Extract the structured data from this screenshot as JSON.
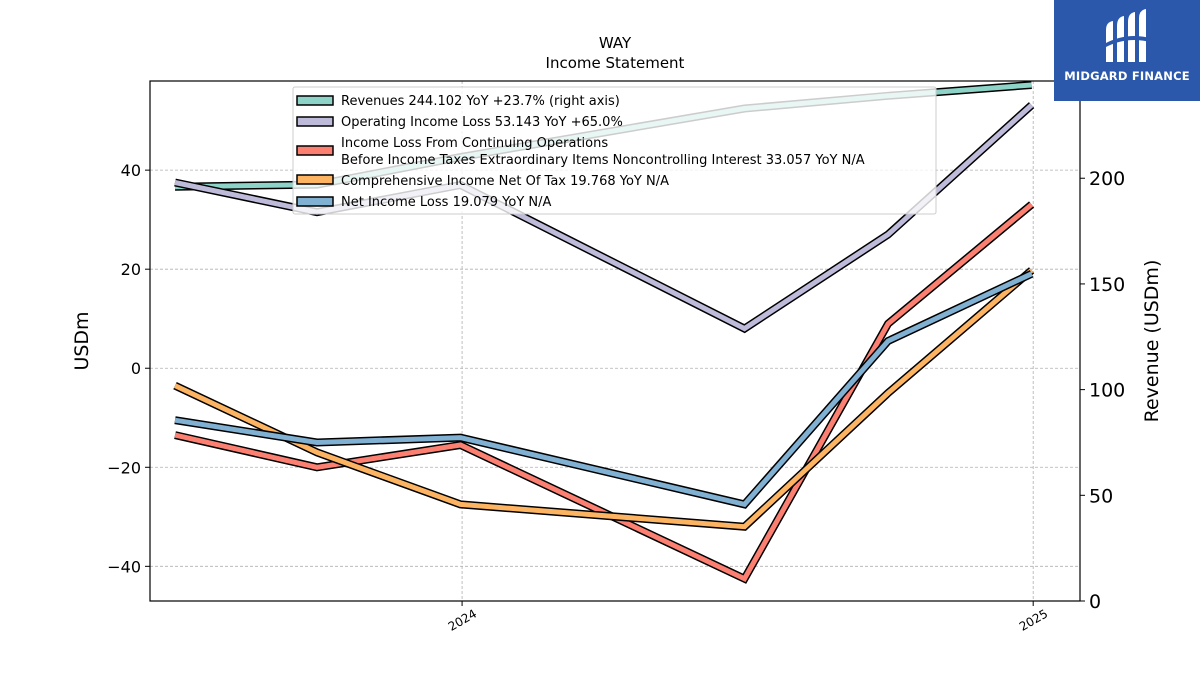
{
  "brand": {
    "name": "MIDGARD FINANCE",
    "background": "#2b58ab"
  },
  "chart_data": {
    "type": "line",
    "title": "WAY",
    "subtitle": "Income Statement",
    "ylabel": "USDm",
    "ylabel_right": "Revenue (USDm)",
    "ylim": [
      -47,
      58
    ],
    "ylim_right": [
      0,
      246
    ],
    "yticks": [
      -40,
      -20,
      0,
      20,
      40
    ],
    "yticks_right": [
      0,
      50,
      100,
      150,
      200
    ],
    "x_range": [
      "2023-06-15",
      "2025-01-31"
    ],
    "xticks": [
      {
        "date": "2024-01-01",
        "label": "2024"
      },
      {
        "date": "2025-01-01",
        "label": "2025"
      }
    ],
    "grid": true,
    "legend_position": "top-center",
    "x": [
      "2023-07-01",
      "2023-09-30",
      "2023-12-31",
      "2024-06-30",
      "2024-09-30",
      "2024-12-31"
    ],
    "series": [
      {
        "name": "Revenues",
        "legend": "Revenues  244.102 YoY +23.7% (right axis)",
        "axis": "right",
        "color": "#8dd3c7",
        "values": [
          196,
          197,
          210,
          233,
          239,
          244.102
        ]
      },
      {
        "name": "Operating Income Loss",
        "legend": "Operating Income Loss  53.143 YoY +65.0%",
        "axis": "left",
        "color": "#bebada",
        "values": [
          37.5,
          31.5,
          37,
          8,
          27,
          53.143
        ]
      },
      {
        "name": "Income Loss From Continuing Operations Before Income Taxes Extraordinary Items Noncontrolling Interest",
        "legend_lines": [
          "Income Loss From Continuing Operations",
          "Before Income Taxes Extraordinary Items Noncontrolling Interest  33.057 YoY N/A"
        ],
        "axis": "left",
        "color": "#fb8072",
        "values": [
          -13.5,
          -20,
          -15.5,
          -42.5,
          9,
          33.057
        ]
      },
      {
        "name": "Comprehensive Income Net Of Tax",
        "legend": "Comprehensive Income Net Of Tax  19.768 YoY N/A",
        "axis": "left",
        "color": "#fdb462",
        "values": [
          -3.5,
          -17,
          -27.5,
          -32,
          -5,
          19.768
        ]
      },
      {
        "name": "Net Income Loss",
        "legend": "Net Income Loss  19.079 YoY N/A",
        "axis": "left",
        "color": "#80b1d3",
        "values": [
          -10.5,
          -15,
          -14,
          -27.5,
          5.5,
          19.079
        ]
      }
    ]
  }
}
